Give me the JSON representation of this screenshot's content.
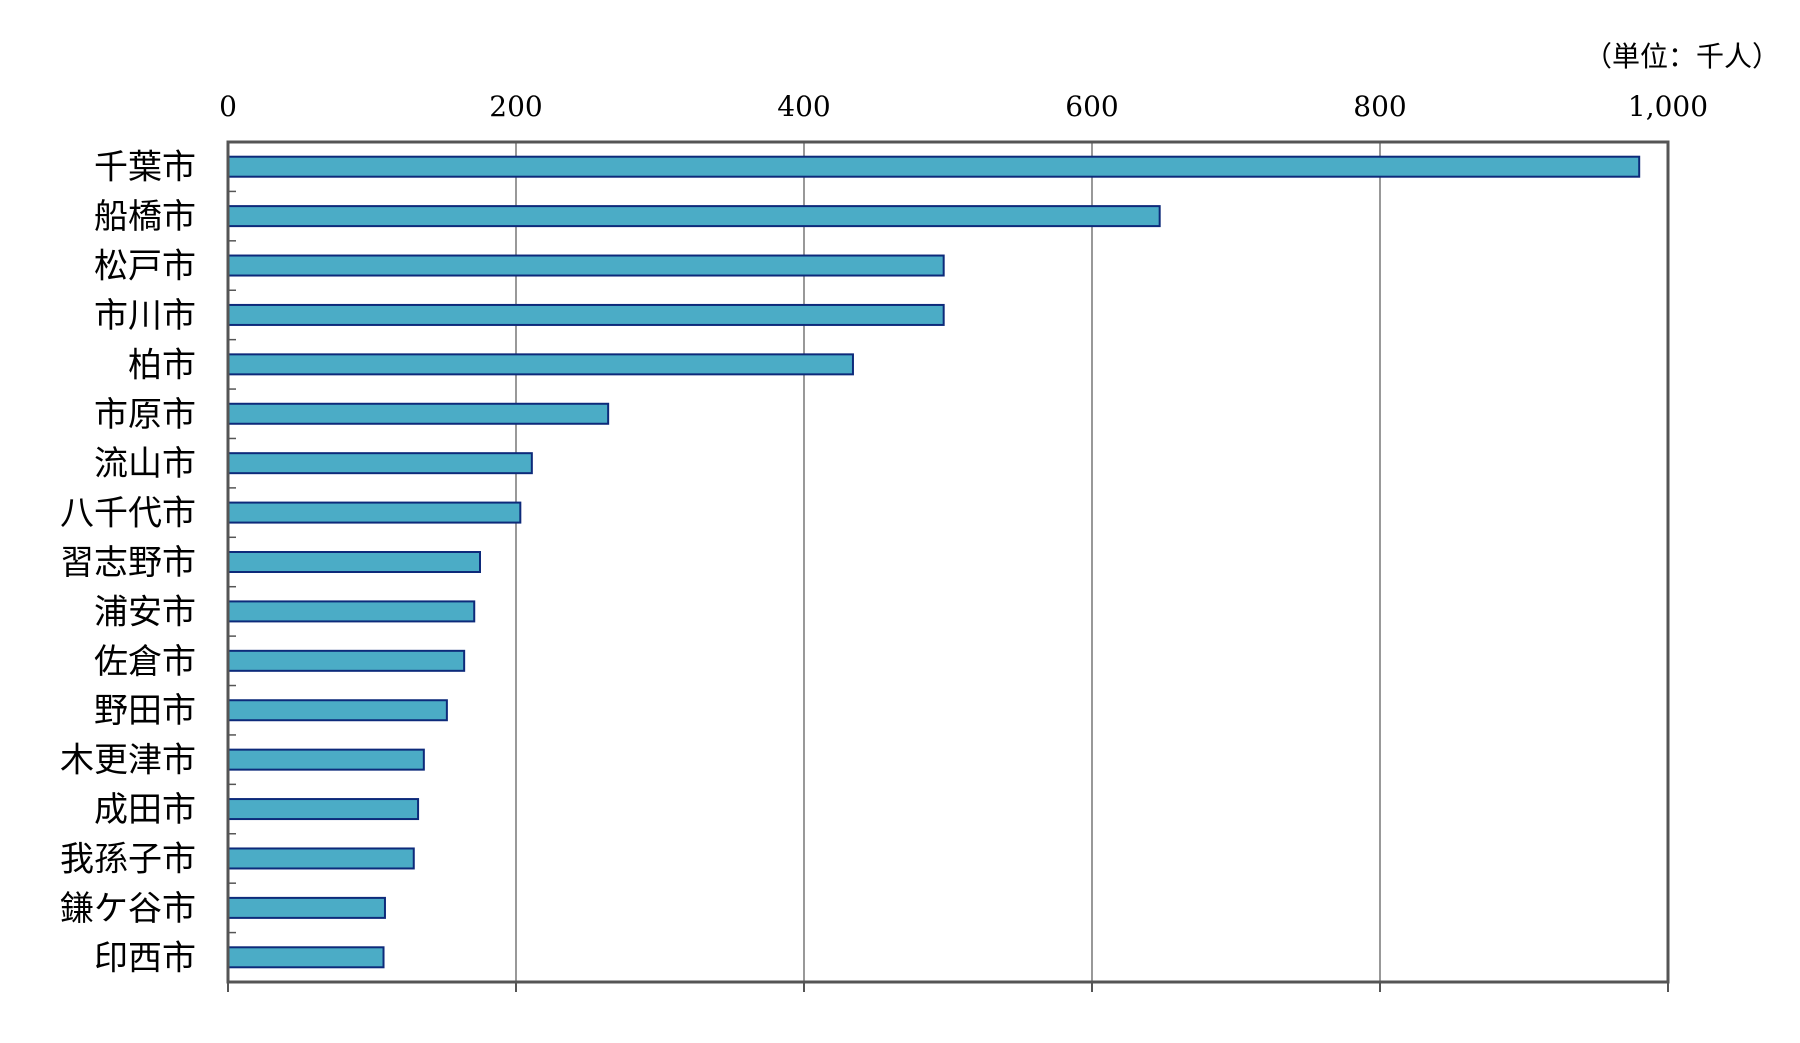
{
  "chart_data": {
    "type": "bar",
    "orientation": "horizontal",
    "unit_label": "（単位：千人）",
    "categories": [
      "千葉市",
      "船橋市",
      "松戸市",
      "市川市",
      "柏市",
      "市原市",
      "流山市",
      "八千代市",
      "習志野市",
      "浦安市",
      "佐倉市",
      "野田市",
      "木更津市",
      "成田市",
      "我孫子市",
      "鎌ケ谷市",
      "印西市"
    ],
    "values": [
      980,
      647,
      497,
      497,
      434,
      264,
      211,
      203,
      175,
      171,
      164,
      152,
      136,
      132,
      129,
      109,
      108
    ],
    "xlim": [
      0,
      1000
    ],
    "x_ticks": [
      0,
      200,
      400,
      600,
      800,
      1000
    ],
    "x_tick_labels": [
      "0",
      "200",
      "400",
      "600",
      "800",
      "1,000"
    ],
    "grid": true,
    "legend": "none",
    "colors": {
      "bar_fill": "#4bacc6",
      "bar_stroke": "#0d2a7a",
      "gridline": "#555555",
      "frame": "#555555"
    }
  }
}
